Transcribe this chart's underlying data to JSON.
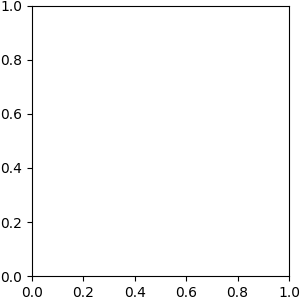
{
  "background_color": "#e8e8e8",
  "bond_color": "#1a1a1a",
  "n_color": "#0000ff",
  "o_color": "#ff0000",
  "nh_color": "#008080",
  "font_size": 8.5,
  "lw": 1.5
}
